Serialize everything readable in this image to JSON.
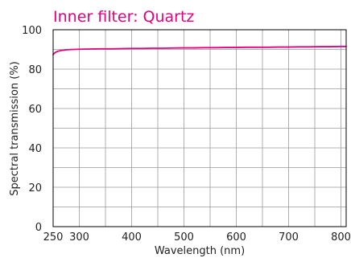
{
  "chart_data": {
    "type": "line",
    "title": "Inner filter: Quartz",
    "xlabel": "Wavelength (nm)",
    "ylabel": "Spectral transmission (%)",
    "xlim": [
      250,
      810
    ],
    "ylim": [
      0,
      100
    ],
    "x_ticks": [
      250,
      300,
      400,
      500,
      600,
      700,
      800
    ],
    "y_ticks": [
      0,
      20,
      40,
      60,
      80,
      100
    ],
    "grid": true,
    "title_color": "#e6007e",
    "line_color": "#e6007e",
    "series": [
      {
        "x": [
          250,
          252,
          255,
          258,
          262,
          266,
          270,
          275,
          280,
          290,
          300,
          320,
          340,
          360,
          380,
          400,
          420,
          440,
          460,
          480,
          500,
          520,
          540,
          560,
          580,
          600,
          620,
          640,
          660,
          680,
          700,
          720,
          740,
          760,
          780,
          800,
          810
        ],
        "values": [
          87.3,
          88.0,
          88.6,
          89.0,
          89.3,
          89.5,
          89.6,
          89.8,
          89.9,
          90.0,
          90.1,
          90.2,
          90.3,
          90.3,
          90.4,
          90.5,
          90.5,
          90.6,
          90.6,
          90.7,
          90.8,
          90.8,
          90.9,
          90.9,
          91.0,
          91.0,
          91.1,
          91.1,
          91.1,
          91.2,
          91.2,
          91.3,
          91.3,
          91.4,
          91.4,
          91.5,
          91.5
        ]
      }
    ]
  }
}
